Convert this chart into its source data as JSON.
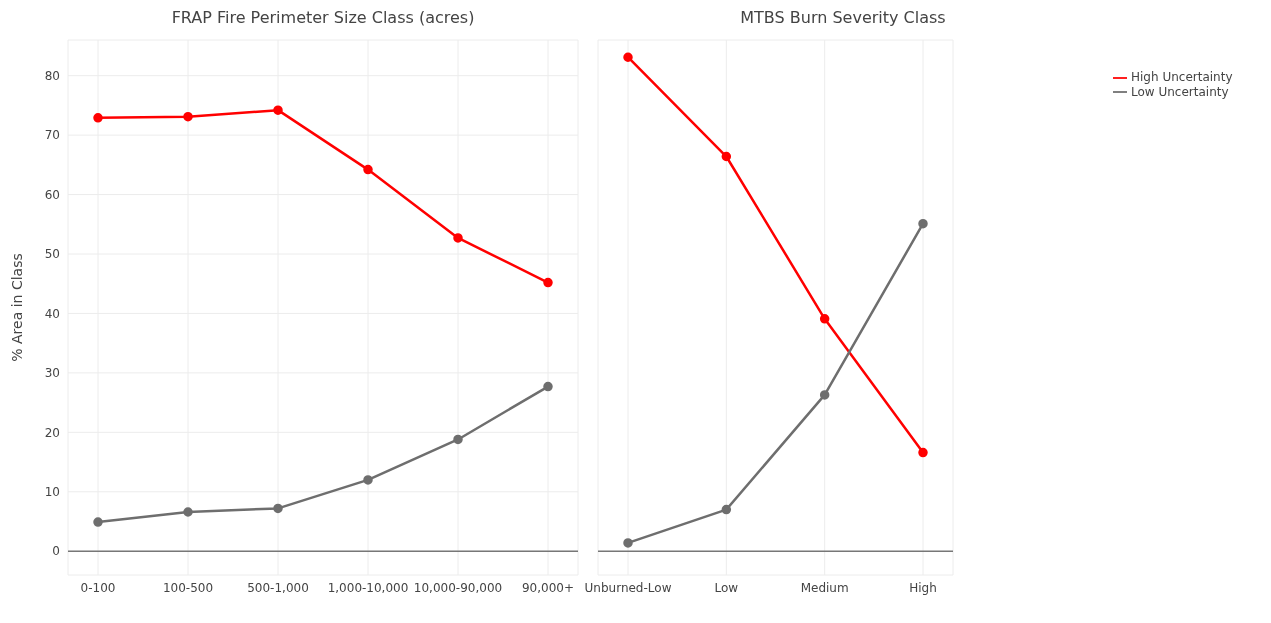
{
  "chart_data": [
    {
      "type": "line",
      "title": "FRAP Fire Perimeter Size Class (acres)",
      "ylabel": "% Area in Class",
      "categories": [
        "0-100",
        "100-500",
        "500-1,000",
        "1,000-10,000",
        "10,000-90,000",
        "90,000+"
      ],
      "series": [
        {
          "color": "#ff0000",
          "values": [
            72.9,
            73.1,
            74.2,
            64.2,
            52.7,
            45.2
          ]
        },
        {
          "color": "#6e6e6e",
          "values": [
            4.9,
            6.6,
            7.2,
            12.0,
            18.8,
            27.7
          ]
        }
      ],
      "ylim": [
        -4,
        86
      ],
      "yticks": [
        0,
        10,
        20,
        30,
        40,
        50,
        60,
        70,
        80
      ],
      "grid": true,
      "marker": "circle",
      "line_style": "solid",
      "legend": false,
      "ref_lines": [
        {
          "axis": "y",
          "value": 0,
          "color": "#777777"
        }
      ]
    },
    {
      "type": "line",
      "title": "MTBS Burn Severity Class",
      "categories": [
        "Unburned-Low",
        "Low",
        "Medium",
        "High"
      ],
      "series": [
        {
          "name": "High Uncertainty",
          "color": "#ff0000",
          "values": [
            83.1,
            66.4,
            39.1,
            16.6
          ]
        },
        {
          "name": "Low Uncertainty",
          "color": "#6e6e6e",
          "values": [
            1.4,
            7.0,
            26.3,
            55.1
          ]
        }
      ],
      "ylim": [
        -4,
        86
      ],
      "yticks": [
        0,
        10,
        20,
        30,
        40,
        50,
        60,
        70,
        80
      ],
      "grid": true,
      "marker": "circle",
      "line_style": "solid",
      "legend": "top right",
      "tick_labels": "x",
      "ref_lines": [
        {
          "axis": "y",
          "value": 0,
          "color": "#777777"
        }
      ]
    }
  ]
}
